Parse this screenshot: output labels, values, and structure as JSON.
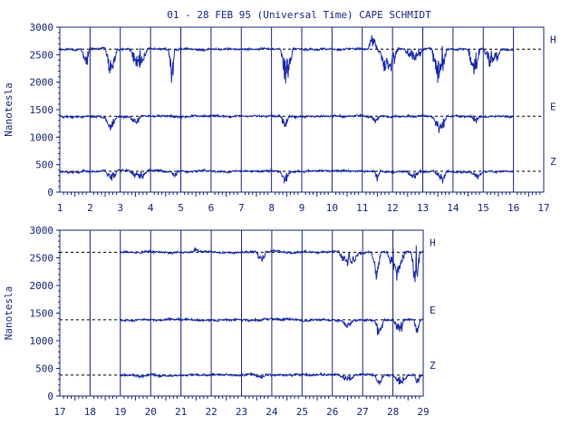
{
  "title": "01 - 28 FEB 95 (Universal Time) CAPE SCHMIDT",
  "colors": {
    "trace": "#1a2aa8",
    "frame": "#1a2a7a",
    "baseline": "#000000",
    "background": "#ffffff"
  },
  "chart_data": [
    {
      "type": "line",
      "panel": "top",
      "ylabel": "Nanotesla",
      "xlim": [
        1,
        17
      ],
      "ylim": [
        0,
        3000
      ],
      "x_ticks": [
        "1",
        "2",
        "3",
        "4",
        "5",
        "6",
        "7",
        "8",
        "9",
        "10",
        "11",
        "12",
        "13",
        "14",
        "15",
        "16",
        "17"
      ],
      "y_ticks": [
        "0",
        "500",
        "1000",
        "1500",
        "2000",
        "2500",
        "3000"
      ],
      "grid": "vertical lines at each day",
      "data_range": [
        1.0,
        16.0
      ],
      "series": [
        {
          "name": "H",
          "baseline": 2600,
          "seed": 11,
          "disturbances": [
            [
              1.7,
              2.0,
              -350
            ],
            [
              2.5,
              2.9,
              -650
            ],
            [
              3.3,
              3.9,
              -450
            ],
            [
              4.6,
              4.8,
              -700
            ],
            [
              8.3,
              8.7,
              -800
            ],
            [
              11.2,
              11.5,
              300
            ],
            [
              11.5,
              12.2,
              -500
            ],
            [
              12.4,
              13.0,
              -300
            ],
            [
              13.3,
              13.8,
              -750
            ],
            [
              14.5,
              14.9,
              -550
            ],
            [
              15.0,
              15.6,
              -350
            ]
          ]
        },
        {
          "name": "E",
          "baseline": 1380,
          "seed": 23,
          "disturbances": [
            [
              2.5,
              2.9,
              -250
            ],
            [
              3.3,
              3.7,
              -150
            ],
            [
              8.3,
              8.6,
              -250
            ],
            [
              11.3,
              11.6,
              -150
            ],
            [
              13.3,
              13.8,
              -300
            ],
            [
              14.6,
              14.9,
              -120
            ]
          ]
        },
        {
          "name": "Z",
          "baseline": 380,
          "seed": 37,
          "disturbances": [
            [
              2.5,
              2.9,
              -200
            ],
            [
              3.3,
              3.9,
              -180
            ],
            [
              4.7,
              4.9,
              -150
            ],
            [
              8.3,
              8.6,
              -250
            ],
            [
              11.4,
              11.6,
              -200
            ],
            [
              12.5,
              12.9,
              -150
            ],
            [
              13.4,
              13.8,
              -250
            ],
            [
              14.6,
              15.0,
              -150
            ]
          ]
        }
      ]
    },
    {
      "type": "line",
      "panel": "bottom",
      "ylabel": "Nanotesla",
      "xlim": [
        17,
        29
      ],
      "ylim": [
        0,
        3000
      ],
      "x_ticks": [
        "17",
        "18",
        "19",
        "20",
        "21",
        "22",
        "23",
        "24",
        "25",
        "26",
        "27",
        "28",
        "29"
      ],
      "y_ticks": [
        "0",
        "500",
        "1000",
        "1500",
        "2000",
        "2500",
        "3000"
      ],
      "grid": "vertical lines at each day",
      "data_range": [
        19.0,
        29.0
      ],
      "series": [
        {
          "name": "H",
          "baseline": 2600,
          "seed": 51,
          "disturbances": [
            [
              21.4,
              21.6,
              100
            ],
            [
              23.5,
              23.8,
              -250
            ],
            [
              26.2,
              26.9,
              -300
            ],
            [
              27.3,
              27.6,
              -600
            ],
            [
              27.8,
              28.4,
              -500
            ],
            [
              28.6,
              28.9,
              -700
            ]
          ]
        },
        {
          "name": "E",
          "baseline": 1380,
          "seed": 67,
          "disturbances": [
            [
              26.3,
              26.7,
              -150
            ],
            [
              27.4,
              27.7,
              -400
            ],
            [
              28.0,
              28.4,
              -250
            ],
            [
              28.7,
              28.9,
              -300
            ]
          ]
        },
        {
          "name": "Z",
          "baseline": 380,
          "seed": 79,
          "disturbances": [
            [
              19.5,
              20.0,
              -60
            ],
            [
              23.4,
              23.8,
              -60
            ],
            [
              26.2,
              26.8,
              -120
            ],
            [
              27.4,
              27.7,
              -200
            ],
            [
              28.0,
              28.5,
              -200
            ],
            [
              28.7,
              28.9,
              -200
            ]
          ]
        }
      ]
    }
  ]
}
